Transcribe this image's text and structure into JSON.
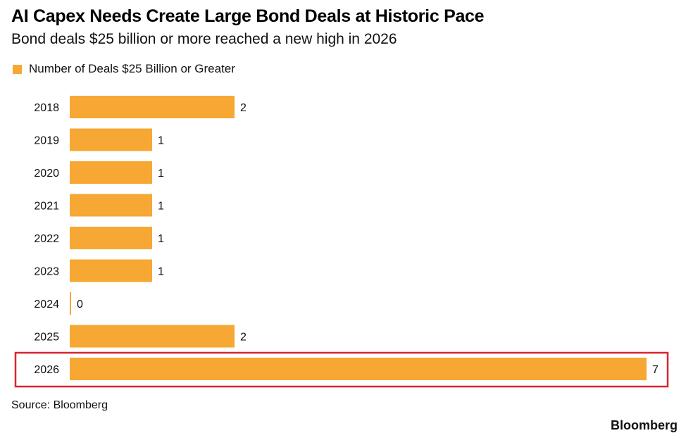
{
  "title": "AI Capex Needs Create Large Bond Deals at Historic Pace",
  "subtitle": "Bond deals $25 billion or more reached a new high in 2026",
  "legend": {
    "label": "Number of Deals $25 Billion or Greater"
  },
  "source": "Source: Bloomberg",
  "brand": "Bloomberg",
  "colors": {
    "bar": "#f7a733",
    "highlight": "#d7262e"
  },
  "chart_data": {
    "type": "bar",
    "orientation": "horizontal",
    "categories": [
      "2018",
      "2019",
      "2020",
      "2021",
      "2022",
      "2023",
      "2024",
      "2025",
      "2026"
    ],
    "series": [
      {
        "name": "Number of Deals $25 Billion or Greater",
        "values": [
          2,
          1,
          1,
          1,
          1,
          1,
          0,
          2,
          7
        ]
      }
    ],
    "data_labels": [
      "2",
      "1",
      "1",
      "1",
      "1",
      "1",
      "0",
      "2",
      "7"
    ],
    "xlim": [
      0,
      7
    ],
    "grid": false,
    "legend_position": "top-left",
    "highlighted_category": "2026"
  }
}
